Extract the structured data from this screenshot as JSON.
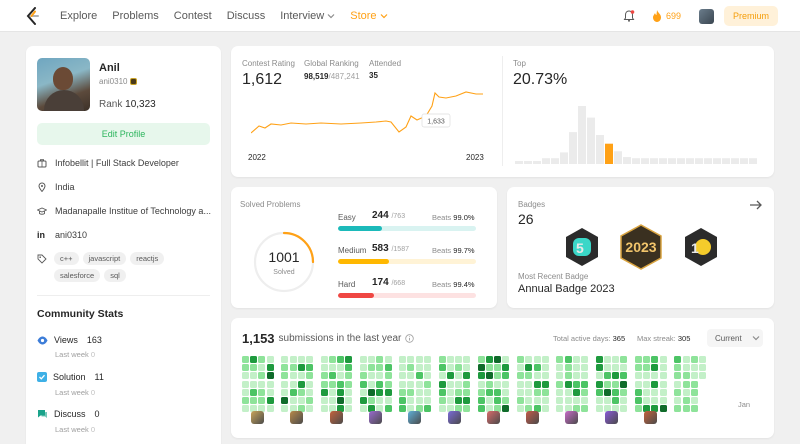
{
  "nav": {
    "links": [
      "Explore",
      "Problems",
      "Contest",
      "Discuss"
    ],
    "interview": "Interview",
    "store": "Store",
    "coins": "699",
    "premium": "Premium"
  },
  "profile": {
    "name": "Anil",
    "username": "ani0310",
    "rank_label": "Rank",
    "rank_value": "10,323",
    "edit_button": "Edit Profile",
    "company": "Infobellit | Full Stack Developer",
    "country": "India",
    "school": "Madanapalle Institue of Technology a...",
    "linkedin": "ani0310",
    "skills": [
      "c++",
      "javascript",
      "reactjs",
      "salesforce",
      "sql"
    ]
  },
  "community": {
    "title": "Community Stats",
    "last_week_label": "Last week",
    "items": [
      {
        "label": "Views",
        "value": "163",
        "last_week": "0",
        "color": "#3d7dd8"
      },
      {
        "label": "Solution",
        "value": "11",
        "last_week": "0",
        "color": "#3eb0e6"
      },
      {
        "label": "Discuss",
        "value": "0",
        "last_week": "0",
        "color": "#1aa38b"
      }
    ]
  },
  "contest": {
    "rating_label": "Contest Rating",
    "rating": "1,612",
    "ranking_label": "Global Ranking",
    "ranking": "98,519",
    "ranking_total": "/487,241",
    "attended_label": "Attended",
    "attended": "35",
    "top_label": "Top",
    "top_value": "20.73%",
    "year_start": "2022",
    "year_end": "2023",
    "tooltip": "1,633",
    "line_color": "#ffa116",
    "histogram_heights": [
      0.05,
      0.05,
      0.05,
      0.1,
      0.1,
      0.2,
      0.55,
      1.0,
      0.8,
      0.5,
      0.35,
      0.22,
      0.12,
      0.1,
      0.1,
      0.1,
      0.1,
      0.1,
      0.1,
      0.1,
      0.1,
      0.1,
      0.1,
      0.1,
      0.1,
      0.1,
      0.1
    ],
    "histogram_highlight": 10
  },
  "solved": {
    "title": "Solved Problems",
    "total": "1001",
    "total_label": "Solved",
    "beats_label": "Beats",
    "rows": [
      {
        "label": "Easy",
        "count": "244",
        "total": "/763",
        "beats": "99.0%",
        "fill": 0.32,
        "color": "#1cbaba",
        "track": "#d9f3f1"
      },
      {
        "label": "Medium",
        "count": "583",
        "total": "/1587",
        "beats": "99.7%",
        "fill": 0.37,
        "color": "#ffb800",
        "track": "#fff3d6"
      },
      {
        "label": "Hard",
        "count": "174",
        "total": "/668",
        "beats": "99.4%",
        "fill": 0.26,
        "color": "#ef4743",
        "track": "#fde2e2"
      }
    ]
  },
  "badges": {
    "title": "Badges",
    "count": "26",
    "recent_label": "Most Recent Badge",
    "recent_name": "Annual Badge 2023",
    "icons": [
      "badge-50-icon",
      "badge-2023-icon",
      "badge-100-icon"
    ]
  },
  "submissions": {
    "count": "1,153",
    "text": "submissions in the last year",
    "active_label": "Total active days:",
    "active_value": "365",
    "streak_label": "Max streak:",
    "streak_value": "305",
    "dropdown": "Current",
    "month_label": "Jan"
  }
}
